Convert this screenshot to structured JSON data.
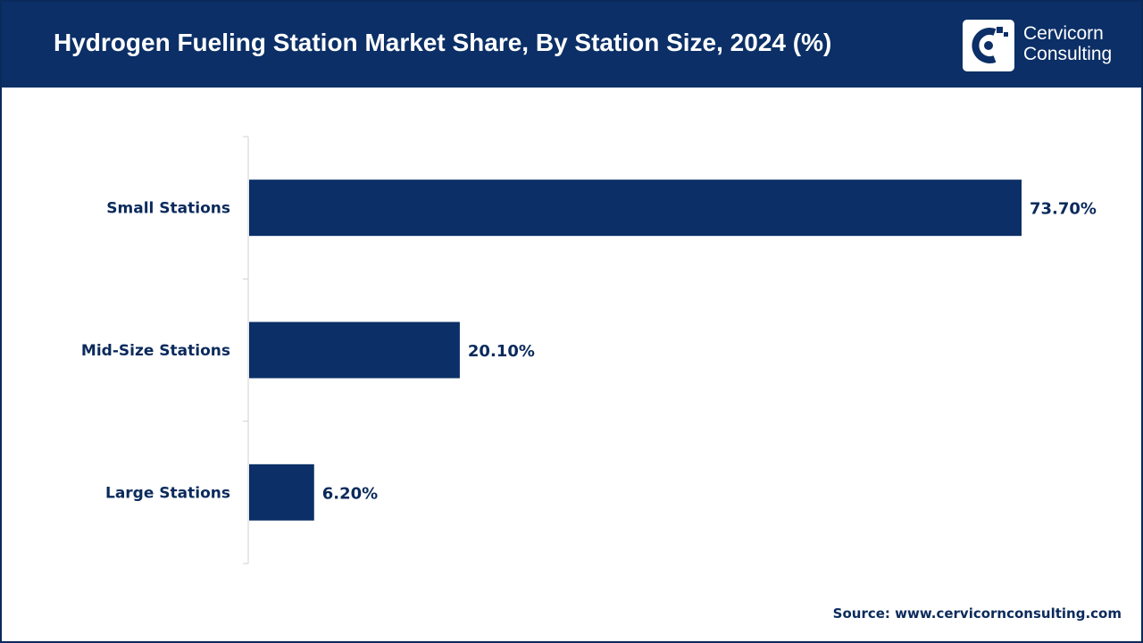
{
  "header": {
    "title": "Hydrogen Fueling Station Market Share, By Station Size, 2024 (%)",
    "logo": {
      "icon": "cervicorn-c-logo-icon",
      "line1": "Cervicorn",
      "line2": "Consulting"
    }
  },
  "colors": {
    "header_bg": "#0b2f66",
    "bar": "#0b2f66",
    "text": "#0b2a5c"
  },
  "chart_data": {
    "type": "bar",
    "orientation": "horizontal",
    "title": "Hydrogen Fueling Station Market Share, By Station Size, 2024 (%)",
    "categories": [
      "Small Stations",
      "Mid-Size Stations",
      "Large Stations"
    ],
    "values": [
      73.7,
      20.1,
      6.2
    ],
    "value_labels": [
      "73.70%",
      "20.10%",
      "6.20%"
    ],
    "xlim": [
      0,
      75
    ],
    "grid": false,
    "legend": "none"
  },
  "footer": {
    "source": "Source: www.cervicornconsulting.com"
  }
}
